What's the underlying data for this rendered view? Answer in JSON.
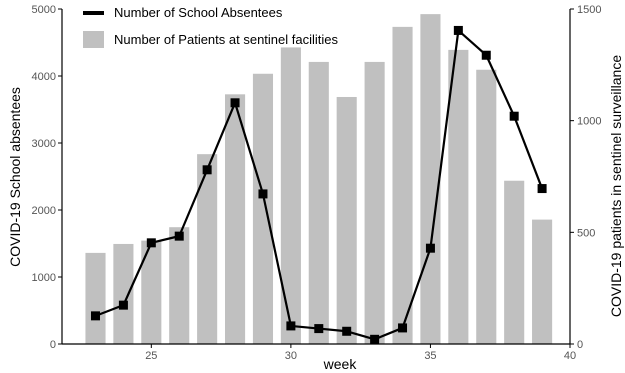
{
  "chart_data": {
    "type": "bar",
    "x": [
      23,
      24,
      25,
      26,
      27,
      28,
      29,
      30,
      31,
      32,
      33,
      34,
      35,
      36,
      37,
      38,
      39
    ],
    "xlabel": "week",
    "xlim": [
      21.8,
      40
    ],
    "xticks": [
      25,
      30,
      35,
      40
    ],
    "grid": false,
    "legend_position": "top-left",
    "series": [
      {
        "name": "Number of School Absentees",
        "kind": "line",
        "axis": "left",
        "color": "#000000",
        "marker": "square",
        "values": [
          420,
          580,
          1510,
          1610,
          2600,
          3600,
          2240,
          270,
          230,
          190,
          70,
          240,
          1430,
          4680,
          4310,
          3400,
          2320
        ]
      },
      {
        "name": "Number of Patients at sentinel facilities",
        "kind": "bar",
        "axis": "right",
        "color": "#c0c0c0",
        "values": [
          408,
          448,
          463,
          523,
          850,
          1118,
          1210,
          1328,
          1263,
          1106,
          1263,
          1420,
          1477,
          1317,
          1228,
          731,
          557
        ]
      }
    ],
    "y_left": {
      "label": "COVID-19 School absentees",
      "ylim": [
        0,
        5000
      ],
      "ticks": [
        0,
        1000,
        2000,
        3000,
        4000,
        5000
      ]
    },
    "y_right": {
      "label": "COVID-19 patients in sentinel surveillance",
      "ylim": [
        0,
        1500
      ],
      "ticks": [
        0,
        500,
        1000,
        1500
      ]
    }
  }
}
